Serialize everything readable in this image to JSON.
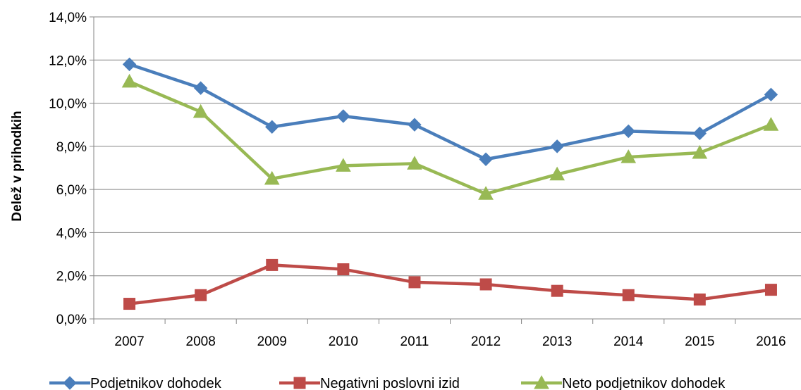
{
  "chart_data": {
    "type": "line",
    "title": "",
    "xlabel": "",
    "ylabel": "Delež v prihodkih",
    "categories": [
      "2007",
      "2008",
      "2009",
      "2010",
      "2011",
      "2012",
      "2013",
      "2014",
      "2015",
      "2016"
    ],
    "ylim": [
      0,
      14
    ],
    "yticks": [
      "0,0%",
      "2,0%",
      "4,0%",
      "6,0%",
      "8,0%",
      "10,0%",
      "12,0%",
      "14,0%"
    ],
    "grid": true,
    "legend_position": "bottom",
    "series": [
      {
        "name": "Podjetnikov dohodek",
        "color": "#4a7ebb",
        "marker": "diamond",
        "values": [
          11.8,
          10.7,
          8.9,
          9.4,
          9.0,
          7.4,
          8.0,
          8.7,
          8.6,
          10.4
        ]
      },
      {
        "name": "Negativni poslovni izid",
        "color": "#be4b48",
        "marker": "square",
        "values": [
          0.7,
          1.1,
          2.5,
          2.3,
          1.7,
          1.6,
          1.3,
          1.1,
          0.9,
          1.35
        ]
      },
      {
        "name": "Neto podjetnikov dohodek",
        "color": "#98b954",
        "marker": "triangle",
        "values": [
          11.0,
          9.6,
          6.5,
          7.1,
          7.2,
          5.8,
          6.7,
          7.5,
          7.7,
          9.0
        ]
      }
    ]
  }
}
